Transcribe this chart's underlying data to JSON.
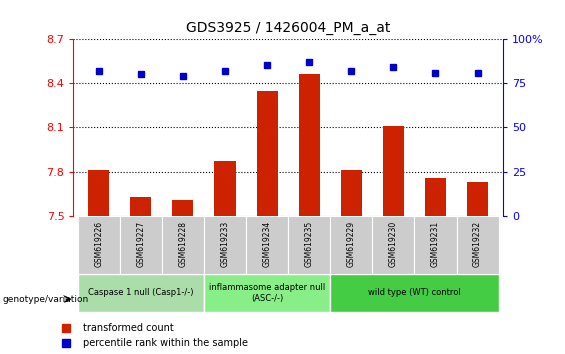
{
  "title": "GDS3925 / 1426004_PM_a_at",
  "samples": [
    "GSM619226",
    "GSM619227",
    "GSM619228",
    "GSM619233",
    "GSM619234",
    "GSM619235",
    "GSM619229",
    "GSM619230",
    "GSM619231",
    "GSM619232"
  ],
  "red_values": [
    7.81,
    7.63,
    7.61,
    7.87,
    8.35,
    8.46,
    7.81,
    8.11,
    7.76,
    7.73
  ],
  "blue_values": [
    82,
    80,
    79,
    82,
    85,
    87,
    82,
    84,
    81,
    81
  ],
  "ylim_left": [
    7.5,
    8.7
  ],
  "ylim_right": [
    0,
    100
  ],
  "yticks_left": [
    7.5,
    7.8,
    8.1,
    8.4,
    8.7
  ],
  "yticks_right": [
    0,
    25,
    50,
    75,
    100
  ],
  "groups": [
    {
      "label": "Caspase 1 null (Casp1-/-)",
      "indices": [
        0,
        1,
        2
      ],
      "color": "#aaddaa"
    },
    {
      "label": "inflammasome adapter null\n(ASC-/-)",
      "indices": [
        3,
        4,
        5
      ],
      "color": "#88ee88"
    },
    {
      "label": "wild type (WT) control",
      "indices": [
        6,
        7,
        8,
        9
      ],
      "color": "#44cc44"
    }
  ],
  "bar_color": "#cc2200",
  "dot_color": "#0000cc",
  "sample_bg_color": "#cccccc",
  "legend_red_label": "transformed count",
  "legend_blue_label": "percentile rank within the sample"
}
